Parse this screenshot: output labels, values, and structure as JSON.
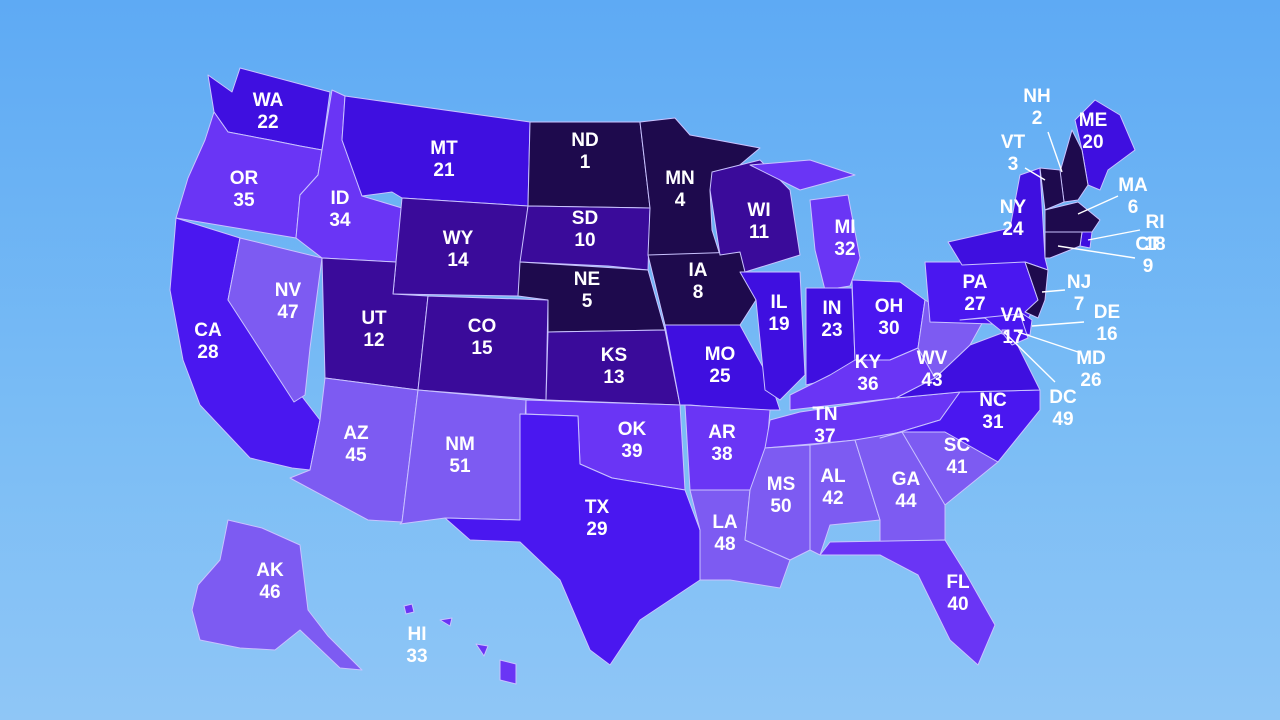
{
  "colors": {
    "rank_1_9": "#1e0a4d",
    "rank_10_15": "#3a0b9a",
    "rank_16_25": "#3f0fe0",
    "rank_26_31": "#4a17f0",
    "rank_32_40": "#6a35f5",
    "rank_41_51": "#7d5bf2"
  },
  "states": [
    {
      "abbr": "WA",
      "rank": "22"
    },
    {
      "abbr": "OR",
      "rank": "35"
    },
    {
      "abbr": "CA",
      "rank": "28"
    },
    {
      "abbr": "NV",
      "rank": "47"
    },
    {
      "abbr": "ID",
      "rank": "34"
    },
    {
      "abbr": "MT",
      "rank": "21"
    },
    {
      "abbr": "WY",
      "rank": "14"
    },
    {
      "abbr": "UT",
      "rank": "12"
    },
    {
      "abbr": "AZ",
      "rank": "45"
    },
    {
      "abbr": "CO",
      "rank": "15"
    },
    {
      "abbr": "NM",
      "rank": "51"
    },
    {
      "abbr": "ND",
      "rank": "1"
    },
    {
      "abbr": "SD",
      "rank": "10"
    },
    {
      "abbr": "NE",
      "rank": "5"
    },
    {
      "abbr": "KS",
      "rank": "13"
    },
    {
      "abbr": "OK",
      "rank": "39"
    },
    {
      "abbr": "TX",
      "rank": "29"
    },
    {
      "abbr": "MN",
      "rank": "4"
    },
    {
      "abbr": "IA",
      "rank": "8"
    },
    {
      "abbr": "MO",
      "rank": "25"
    },
    {
      "abbr": "AR",
      "rank": "38"
    },
    {
      "abbr": "LA",
      "rank": "48"
    },
    {
      "abbr": "WI",
      "rank": "11"
    },
    {
      "abbr": "IL",
      "rank": "19"
    },
    {
      "abbr": "MI",
      "rank": "32"
    },
    {
      "abbr": "IN",
      "rank": "23"
    },
    {
      "abbr": "OH",
      "rank": "30"
    },
    {
      "abbr": "KY",
      "rank": "36"
    },
    {
      "abbr": "TN",
      "rank": "37"
    },
    {
      "abbr": "MS",
      "rank": "50"
    },
    {
      "abbr": "AL",
      "rank": "42"
    },
    {
      "abbr": "GA",
      "rank": "44"
    },
    {
      "abbr": "FL",
      "rank": "40"
    },
    {
      "abbr": "SC",
      "rank": "41"
    },
    {
      "abbr": "NC",
      "rank": "31"
    },
    {
      "abbr": "VA",
      "rank": "17"
    },
    {
      "abbr": "WV",
      "rank": "43"
    },
    {
      "abbr": "PA",
      "rank": "27"
    },
    {
      "abbr": "NY",
      "rank": "24"
    },
    {
      "abbr": "ME",
      "rank": "20"
    },
    {
      "abbr": "NH",
      "rank": "2"
    },
    {
      "abbr": "VT",
      "rank": "3"
    },
    {
      "abbr": "MA",
      "rank": "6"
    },
    {
      "abbr": "RI",
      "rank": "18"
    },
    {
      "abbr": "CT",
      "rank": "9"
    },
    {
      "abbr": "NJ",
      "rank": "7"
    },
    {
      "abbr": "DE",
      "rank": "16"
    },
    {
      "abbr": "MD",
      "rank": "26"
    },
    {
      "abbr": "DC",
      "rank": "49"
    },
    {
      "abbr": "AK",
      "rank": "46"
    },
    {
      "abbr": "HI",
      "rank": "33"
    }
  ]
}
